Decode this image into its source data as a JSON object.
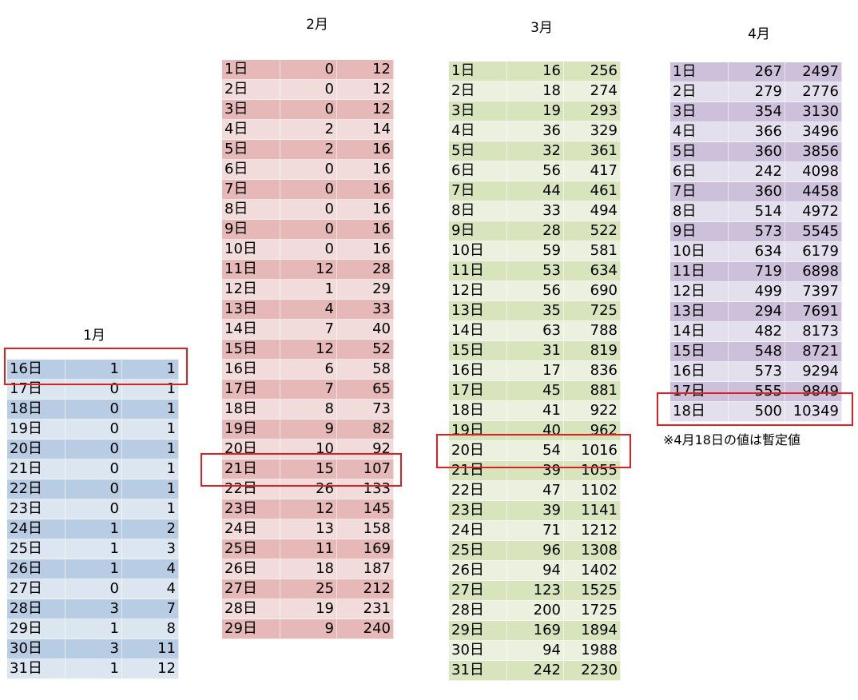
{
  "tables": [
    {
      "title": "1月",
      "rows": [
        [
          "16日",
          1,
          1
        ],
        [
          "17日",
          0,
          1
        ],
        [
          "18日",
          0,
          1
        ],
        [
          "19日",
          0,
          1
        ],
        [
          "20日",
          0,
          1
        ],
        [
          "21日",
          0,
          1
        ],
        [
          "22日",
          0,
          1
        ],
        [
          "23日",
          0,
          1
        ],
        [
          "24日",
          1,
          2
        ],
        [
          "25日",
          1,
          3
        ],
        [
          "26日",
          1,
          4
        ],
        [
          "27日",
          0,
          4
        ],
        [
          "28日",
          3,
          7
        ],
        [
          "29日",
          1,
          8
        ],
        [
          "30日",
          3,
          11
        ],
        [
          "31日",
          1,
          12
        ]
      ]
    },
    {
      "title": "2月",
      "rows": [
        [
          "1日",
          0,
          12
        ],
        [
          "2日",
          0,
          12
        ],
        [
          "3日",
          0,
          12
        ],
        [
          "4日",
          2,
          14
        ],
        [
          "5日",
          2,
          16
        ],
        [
          "6日",
          0,
          16
        ],
        [
          "7日",
          0,
          16
        ],
        [
          "8日",
          0,
          16
        ],
        [
          "9日",
          0,
          16
        ],
        [
          "10日",
          0,
          16
        ],
        [
          "11日",
          12,
          28
        ],
        [
          "12日",
          1,
          29
        ],
        [
          "13日",
          4,
          33
        ],
        [
          "14日",
          7,
          40
        ],
        [
          "15日",
          12,
          52
        ],
        [
          "16日",
          6,
          58
        ],
        [
          "17日",
          7,
          65
        ],
        [
          "18日",
          8,
          73
        ],
        [
          "19日",
          9,
          82
        ],
        [
          "20日",
          10,
          92
        ],
        [
          "21日",
          15,
          107
        ],
        [
          "22日",
          26,
          133
        ],
        [
          "23日",
          12,
          145
        ],
        [
          "24日",
          13,
          158
        ],
        [
          "25日",
          11,
          169
        ],
        [
          "26日",
          18,
          187
        ],
        [
          "27日",
          25,
          212
        ],
        [
          "28日",
          19,
          231
        ],
        [
          "29日",
          9,
          240
        ]
      ]
    },
    {
      "title": "3月",
      "rows": [
        [
          "1日",
          16,
          256
        ],
        [
          "2日",
          18,
          274
        ],
        [
          "3日",
          19,
          293
        ],
        [
          "4日",
          36,
          329
        ],
        [
          "5日",
          32,
          361
        ],
        [
          "6日",
          56,
          417
        ],
        [
          "7日",
          44,
          461
        ],
        [
          "8日",
          33,
          494
        ],
        [
          "9日",
          28,
          522
        ],
        [
          "10日",
          59,
          581
        ],
        [
          "11日",
          53,
          634
        ],
        [
          "12日",
          56,
          690
        ],
        [
          "13日",
          35,
          725
        ],
        [
          "14日",
          63,
          788
        ],
        [
          "15日",
          31,
          819
        ],
        [
          "16日",
          17,
          836
        ],
        [
          "17日",
          45,
          881
        ],
        [
          "18日",
          41,
          922
        ],
        [
          "19日",
          40,
          962
        ],
        [
          "20日",
          54,
          1016
        ],
        [
          "21日",
          39,
          1055
        ],
        [
          "22日",
          47,
          1102
        ],
        [
          "23日",
          39,
          1141
        ],
        [
          "24日",
          71,
          1212
        ],
        [
          "25日",
          96,
          1308
        ],
        [
          "26日",
          94,
          1402
        ],
        [
          "27日",
          123,
          1525
        ],
        [
          "28日",
          200,
          1725
        ],
        [
          "29日",
          169,
          1894
        ],
        [
          "30日",
          94,
          1988
        ],
        [
          "31日",
          242,
          2230
        ]
      ]
    },
    {
      "title": "4月",
      "rows": [
        [
          "1日",
          267,
          2497
        ],
        [
          "2日",
          279,
          2776
        ],
        [
          "3日",
          354,
          3130
        ],
        [
          "4日",
          366,
          3496
        ],
        [
          "5日",
          360,
          3856
        ],
        [
          "6日",
          242,
          4098
        ],
        [
          "7日",
          360,
          4458
        ],
        [
          "8日",
          514,
          4972
        ],
        [
          "9日",
          573,
          5545
        ],
        [
          "10日",
          634,
          6179
        ],
        [
          "11日",
          719,
          6898
        ],
        [
          "12日",
          499,
          7397
        ],
        [
          "13日",
          294,
          7691
        ],
        [
          "14日",
          482,
          8173
        ],
        [
          "15日",
          548,
          8721
        ],
        [
          "16日",
          573,
          9294
        ],
        [
          "17日",
          555,
          9849
        ],
        [
          "18日",
          500,
          10349
        ]
      ]
    }
  ],
  "note": "※4月18日の値は暫定値"
}
